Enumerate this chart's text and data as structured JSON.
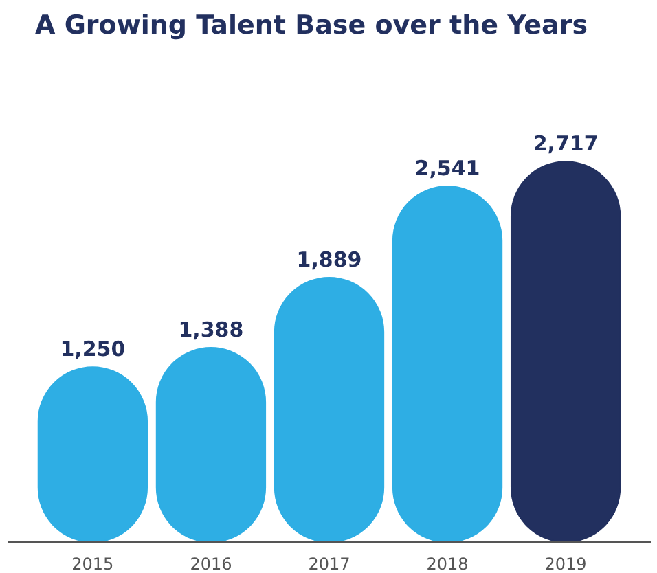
{
  "chart_data": {
    "type": "bar",
    "title": "A Growing Talent Base over the Years",
    "categories": [
      "2015",
      "2016",
      "2017",
      "2018",
      "2019"
    ],
    "values": [
      1250,
      1388,
      1889,
      2541,
      2717
    ],
    "colors": [
      "#2eaee4",
      "#2eaee4",
      "#2eaee4",
      "#2eaee4",
      "#22305f"
    ],
    "value_labels": [
      "1,250",
      "1,388",
      "1,889",
      "2,541",
      "2,717"
    ],
    "grid": false
  }
}
